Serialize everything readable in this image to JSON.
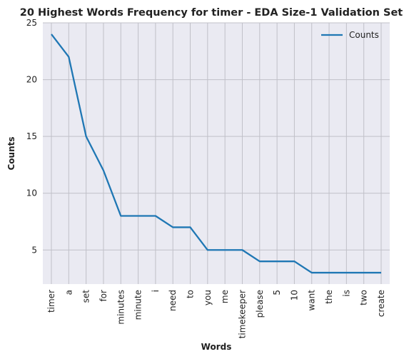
{
  "chart_data": {
    "type": "line",
    "title": "20 Highest Words Frequency for timer - EDA Size-1 Validation Set",
    "xlabel": "Words",
    "ylabel": "Counts",
    "categories": [
      "timer",
      "a",
      "set",
      "for",
      "minutes",
      "minute",
      "i",
      "need",
      "to",
      "you",
      "me",
      "timekeeper",
      "please",
      "5",
      "10",
      "want",
      "the",
      "is",
      "two",
      "create"
    ],
    "series": [
      {
        "name": "Counts",
        "values": [
          24,
          22,
          15,
          12,
          8,
          8,
          8,
          7,
          7,
          5,
          5,
          5,
          4,
          4,
          4,
          3,
          3,
          3,
          3,
          3
        ],
        "color": "#1f77b4"
      }
    ],
    "ylim": [
      2,
      25
    ],
    "yticks": [
      5,
      10,
      15,
      20,
      25
    ],
    "grid": true,
    "legend_position": "top-right",
    "background": "#eaeaf2",
    "grid_color": "#c0c0c8"
  }
}
